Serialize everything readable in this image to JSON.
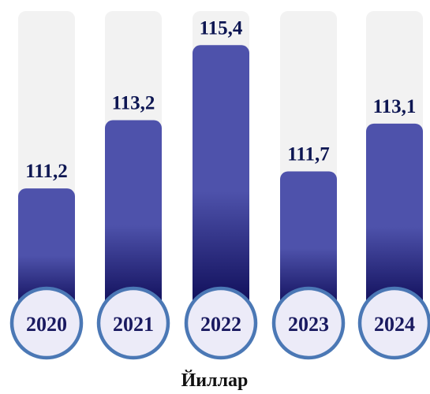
{
  "chart_data": {
    "type": "bar",
    "categories": [
      "2020",
      "2021",
      "2022",
      "2023",
      "2024"
    ],
    "values": [
      111.2,
      113.2,
      115.4,
      111.7,
      113.1
    ],
    "value_labels": [
      "111,2",
      "113,2",
      "115,4",
      "111,7",
      "113,1"
    ],
    "title": "",
    "xlabel": "Йиллар",
    "ylabel": "",
    "ylim": [
      107.6,
      116.4
    ],
    "grid": false,
    "legend": "none",
    "colors": {
      "bar_top": "#4e52ab",
      "bar_bottom": "#0c0a55",
      "track": "#f2f2f2",
      "circle_fill": "#ecebf8",
      "circle_stroke": "#4b78b5",
      "label_text": "#0d1652"
    }
  }
}
